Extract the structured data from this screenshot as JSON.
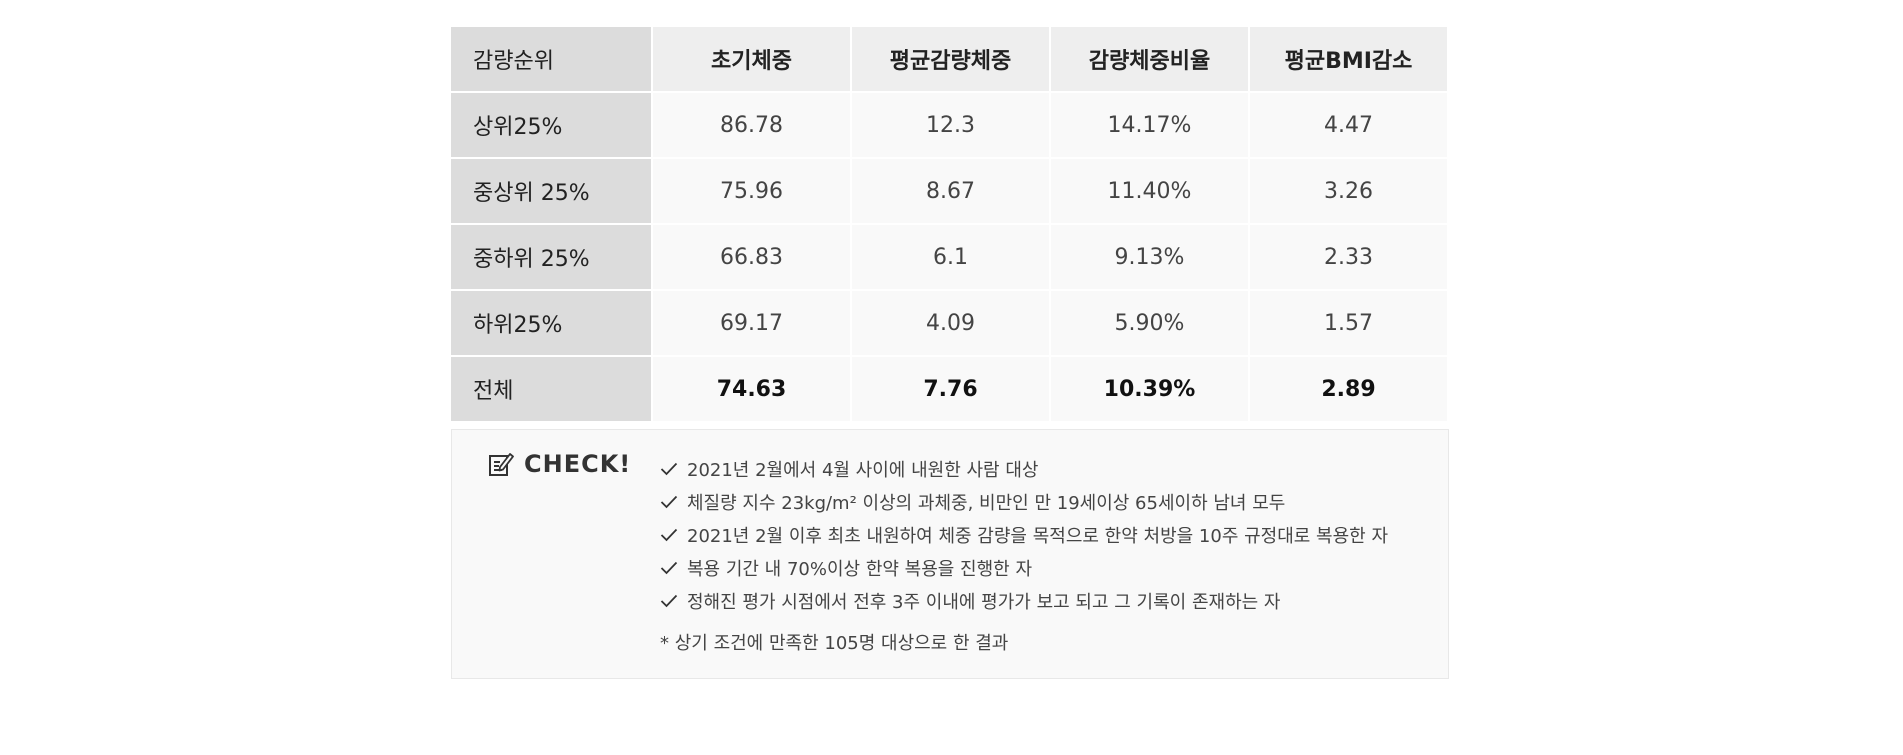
{
  "table": {
    "headers": [
      "감량순위",
      "초기체중",
      "평균감량체중",
      "감량체중비율",
      "평균BMI감소"
    ],
    "rows": [
      {
        "rank": "상위25%",
        "initial": "86.78",
        "avg_loss": "12.3",
        "ratio": "14.17%",
        "bmi": "4.47"
      },
      {
        "rank": "중상위 25%",
        "initial": "75.96",
        "avg_loss": "8.67",
        "ratio": "11.40%",
        "bmi": "3.26"
      },
      {
        "rank": "중하위 25%",
        "initial": "66.83",
        "avg_loss": "6.1",
        "ratio": "9.13%",
        "bmi": "2.33"
      },
      {
        "rank": "하위25%",
        "initial": "69.17",
        "avg_loss": "4.09",
        "ratio": "5.90%",
        "bmi": "1.57"
      },
      {
        "rank": "전체",
        "initial": "74.63",
        "avg_loss": "7.76",
        "ratio": "10.39%",
        "bmi": "2.89"
      }
    ]
  },
  "check": {
    "title": "CHECK!",
    "icon": "memo-pencil-icon",
    "items": [
      "2021년 2월에서 4월 사이에 내원한 사람 대상",
      "체질량 지수 23kg/m² 이상의 과체중, 비만인 만 19세이상 65세이하 남녀 모두",
      "2021년 2월 이후 최초 내원하여 체중 감량을 목적으로 한약 처방을 10주 규정대로 복용한 자",
      "복용 기간 내 70%이상 한약 복용을 진행한 자",
      "정해진 평가 시점에서 전후 3주 이내에 평가가 보고 되고 그 기록이 존재하는 자"
    ],
    "footnote": "* 상기 조건에 만족한 105명 대상으로 한 결과"
  },
  "colors": {
    "rank_cell": "#dcdcdc",
    "header_cell": "#eeeeee",
    "data_cell": "#f9f9f9",
    "text": "#333333"
  }
}
